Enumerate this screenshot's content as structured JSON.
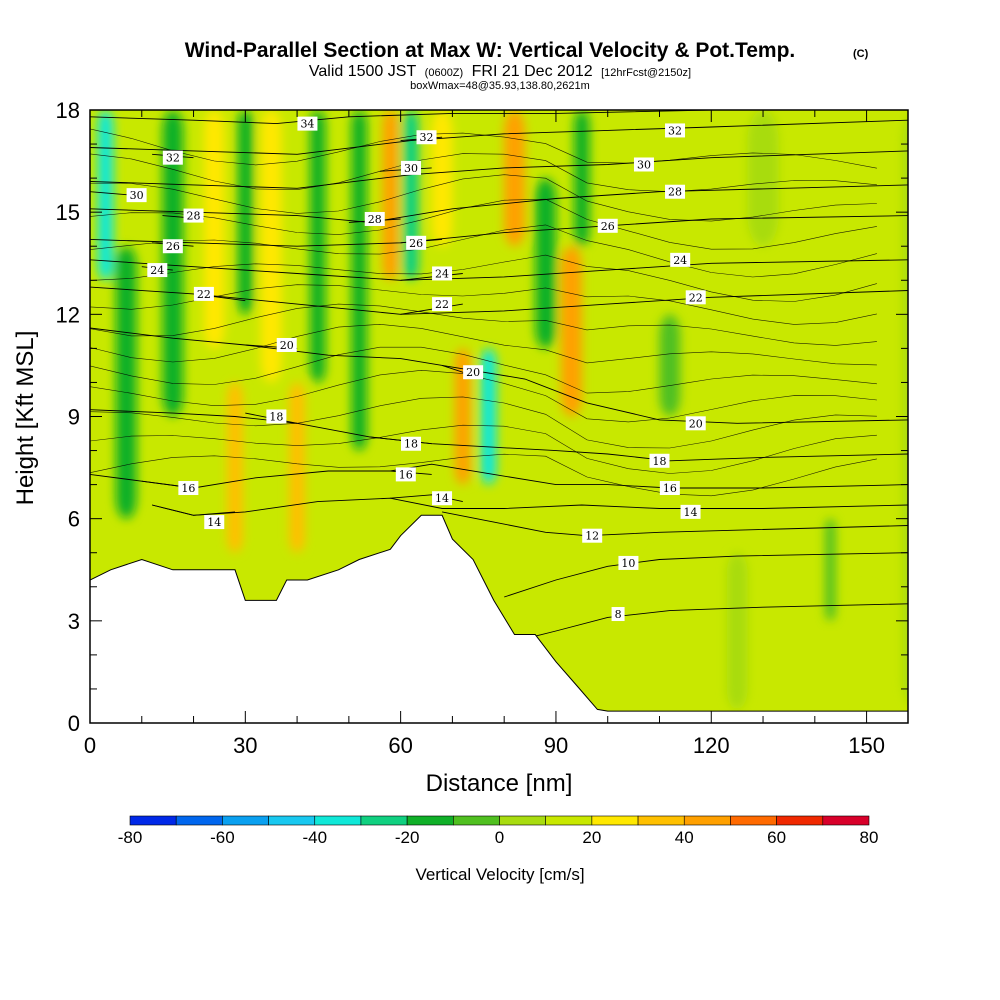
{
  "chart_data": {
    "type": "heatmap",
    "title": "Wind-Parallel Section at Max W: Vertical Velocity & Pot.Temp.",
    "title_mark": "(C)",
    "subtitle_parts": [
      "Valid 1500 JST",
      "(0600Z)",
      "FRI 21 Dec 2012",
      "[12hrFcst@2150z]"
    ],
    "subtitle2": "boxWmax=48@35.93,138.80,2621m",
    "xlabel": "Distance [nm]",
    "ylabel": "Height [Kft MSL]",
    "xlim": [
      0,
      158
    ],
    "ylim": [
      0,
      18
    ],
    "x_ticks": [
      0,
      30,
      60,
      90,
      120,
      150
    ],
    "y_ticks": [
      0,
      3,
      6,
      9,
      12,
      15,
      18
    ],
    "grid": false,
    "colorbar": {
      "title": "Vertical Velocity [cm/s]",
      "min": -80,
      "max": 80,
      "step": 10,
      "tick_labels": [
        -80,
        -60,
        -40,
        -20,
        0,
        20,
        40,
        60,
        80
      ],
      "colors": [
        "#0028e8",
        "#0066ee",
        "#0aa0f0",
        "#18c8f0",
        "#10e8d8",
        "#10d080",
        "#10b028",
        "#50c020",
        "#a8dc10",
        "#c8e800",
        "#ffe800",
        "#ffc000",
        "#ffa000",
        "#ff6a00",
        "#f02800",
        "#d8002a",
        "#a0005a",
        "#6a0090"
      ]
    },
    "terrain_kft": [
      [
        0,
        4.2
      ],
      [
        4,
        4.5
      ],
      [
        10,
        4.8
      ],
      [
        16,
        4.5
      ],
      [
        25,
        4.5
      ],
      [
        28,
        4.5
      ],
      [
        30,
        3.6
      ],
      [
        36,
        3.6
      ],
      [
        38,
        4.2
      ],
      [
        42,
        4.2
      ],
      [
        48,
        4.5
      ],
      [
        52,
        4.8
      ],
      [
        58,
        5.1
      ],
      [
        60,
        5.5
      ],
      [
        64,
        6.1
      ],
      [
        68,
        6.1
      ],
      [
        70,
        5.4
      ],
      [
        74,
        4.8
      ],
      [
        78,
        3.6
      ],
      [
        82,
        2.6
      ],
      [
        86,
        2.6
      ],
      [
        90,
        1.8
      ],
      [
        94,
        1.1
      ],
      [
        98,
        0.4
      ],
      [
        100,
        0.35
      ],
      [
        158,
        0.35
      ]
    ],
    "velocity_features": [
      {
        "x": 3,
        "ytop": 18,
        "ybot": 13,
        "w": 3,
        "value": -40
      },
      {
        "x": 7,
        "ytop": 14,
        "ybot": 6,
        "w": 4,
        "value": -20
      },
      {
        "x": 16,
        "ytop": 18,
        "ybot": 9,
        "w": 4,
        "value": -15
      },
      {
        "x": 24,
        "ytop": 18,
        "ybot": 11,
        "w": 4,
        "value": 20
      },
      {
        "x": 28,
        "ytop": 10,
        "ybot": 5,
        "w": 3,
        "value": 30
      },
      {
        "x": 30,
        "ytop": 18,
        "ybot": 12,
        "w": 3,
        "value": -20
      },
      {
        "x": 35,
        "ytop": 18,
        "ybot": 10,
        "w": 4,
        "value": 25
      },
      {
        "x": 40,
        "ytop": 10,
        "ybot": 5,
        "w": 3,
        "value": 30
      },
      {
        "x": 44,
        "ytop": 18,
        "ybot": 10,
        "w": 3,
        "value": -15
      },
      {
        "x": 52,
        "ytop": 18,
        "ybot": 8,
        "w": 3,
        "value": -20
      },
      {
        "x": 58,
        "ytop": 18,
        "ybot": 13,
        "w": 3,
        "value": 45
      },
      {
        "x": 62,
        "ytop": 18,
        "ybot": 13,
        "w": 3,
        "value": -25
      },
      {
        "x": 68,
        "ytop": 18,
        "ybot": 14,
        "w": 4,
        "value": 25
      },
      {
        "x": 72,
        "ytop": 11,
        "ybot": 7,
        "w": 3,
        "value": 48
      },
      {
        "x": 77,
        "ytop": 11,
        "ybot": 7,
        "w": 3,
        "value": -35
      },
      {
        "x": 82,
        "ytop": 18,
        "ybot": 14,
        "w": 4,
        "value": 40
      },
      {
        "x": 88,
        "ytop": 16,
        "ybot": 11,
        "w": 4,
        "value": -20
      },
      {
        "x": 93,
        "ytop": 14,
        "ybot": 9,
        "w": 4,
        "value": 45
      },
      {
        "x": 95,
        "ytop": 18,
        "ybot": 14,
        "w": 3,
        "value": -20
      },
      {
        "x": 88,
        "ytop": 6,
        "ybot": 3,
        "w": 4,
        "value": 15
      },
      {
        "x": 112,
        "ytop": 12,
        "ybot": 9,
        "w": 4,
        "value": -10
      },
      {
        "x": 130,
        "ytop": 18,
        "ybot": 14,
        "w": 6,
        "value": 5
      },
      {
        "x": 135,
        "ytop": 12,
        "ybot": 6,
        "w": 5,
        "value": 10
      },
      {
        "x": 110,
        "ytop": 5,
        "ybot": 0.4,
        "w": 3,
        "value": 12
      },
      {
        "x": 125,
        "ytop": 5,
        "ybot": 0.4,
        "w": 4,
        "value": 8
      },
      {
        "x": 143,
        "ytop": 6,
        "ybot": 3,
        "w": 2,
        "value": -10
      },
      {
        "x": 150,
        "ytop": 4,
        "ybot": 0.4,
        "w": 3,
        "value": 10
      },
      {
        "x": 160,
        "ytop": 18,
        "ybot": 0.4,
        "w": 6,
        "value": 5
      }
    ],
    "theta_contours": [
      {
        "label": "8",
        "points": [
          [
            82,
            2.4
          ],
          [
            90,
            2.7
          ],
          [
            100,
            3.1
          ],
          [
            112,
            3.3
          ],
          [
            130,
            3.4
          ],
          [
            158,
            3.5
          ]
        ],
        "label_at": [
          102,
          3.2
        ]
      },
      {
        "label": "10",
        "points": [
          [
            80,
            3.7
          ],
          [
            90,
            4.2
          ],
          [
            100,
            4.6
          ],
          [
            110,
            4.8
          ],
          [
            125,
            4.9
          ],
          [
            158,
            5.0
          ]
        ],
        "label_at": [
          104,
          4.7
        ]
      },
      {
        "label": "12",
        "points": [
          [
            68,
            6.2
          ],
          [
            78,
            5.9
          ],
          [
            88,
            5.6
          ],
          [
            96,
            5.5
          ],
          [
            110,
            5.6
          ],
          [
            158,
            5.8
          ]
        ],
        "label_at": [
          97,
          5.5
        ]
      },
      {
        "label": "14",
        "points": [
          [
            12,
            6.4
          ],
          [
            20,
            6.1
          ],
          [
            30,
            6.2
          ],
          [
            44,
            6.5
          ],
          [
            58,
            6.6
          ],
          [
            68,
            6.3
          ],
          [
            80,
            6.3
          ],
          [
            95,
            6.4
          ],
          [
            110,
            6.3
          ],
          [
            130,
            6.3
          ],
          [
            158,
            6.4
          ]
        ],
        "label_at": [
          116,
          6.2
        ]
      },
      {
        "label": "14",
        "points": [
          [
            12,
            6.4
          ],
          [
            20,
            6.1
          ],
          [
            28,
            6.2
          ]
        ],
        "label_at": [
          24,
          5.9
        ]
      },
      {
        "label": "14",
        "points": [
          [
            58,
            6.6
          ],
          [
            66,
            6.7
          ],
          [
            72,
            6.5
          ]
        ],
        "label_at": [
          68,
          6.6
        ]
      },
      {
        "label": "16",
        "points": [
          [
            0,
            7.3
          ],
          [
            10,
            7.1
          ],
          [
            20,
            6.9
          ],
          [
            32,
            7.2
          ],
          [
            46,
            7.4
          ],
          [
            58,
            7.4
          ],
          [
            66,
            7.6
          ],
          [
            78,
            7.3
          ],
          [
            90,
            7.0
          ],
          [
            100,
            7.0
          ],
          [
            112,
            6.9
          ],
          [
            130,
            6.9
          ],
          [
            158,
            7.0
          ]
        ],
        "label_at": [
          112,
          6.9
        ]
      },
      {
        "label": "16",
        "points": [
          [
            10,
            7.1
          ],
          [
            20,
            6.9
          ]
        ],
        "label_at": [
          19,
          6.9
        ]
      },
      {
        "label": "16",
        "points": [
          [
            58,
            7.4
          ],
          [
            66,
            7.3
          ]
        ],
        "label_at": [
          61,
          7.3
        ]
      },
      {
        "label": "18",
        "points": [
          [
            0,
            9.2
          ],
          [
            16,
            9.1
          ],
          [
            28,
            9.0
          ],
          [
            40,
            8.8
          ],
          [
            54,
            8.4
          ],
          [
            66,
            8.2
          ],
          [
            78,
            8.1
          ],
          [
            90,
            8.0
          ],
          [
            100,
            7.9
          ],
          [
            112,
            7.7
          ],
          [
            130,
            7.8
          ],
          [
            158,
            7.9
          ]
        ],
        "label_at": [
          110,
          7.7
        ]
      },
      {
        "label": "18",
        "points": [
          [
            30,
            9.1
          ],
          [
            40,
            8.8
          ]
        ],
        "label_at": [
          36,
          9.0
        ]
      },
      {
        "label": "18",
        "points": [
          [
            54,
            8.4
          ],
          [
            66,
            8.2
          ]
        ],
        "label_at": [
          62,
          8.2
        ]
      },
      {
        "label": "20",
        "points": [
          [
            0,
            11.6
          ],
          [
            16,
            11.3
          ],
          [
            30,
            11.1
          ],
          [
            46,
            10.8
          ],
          [
            60,
            10.7
          ],
          [
            72,
            10.4
          ],
          [
            84,
            10.1
          ],
          [
            96,
            9.4
          ],
          [
            110,
            8.9
          ],
          [
            125,
            8.8
          ],
          [
            158,
            8.9
          ]
        ],
        "label_at": [
          117,
          8.8
        ]
      },
      {
        "label": "20",
        "points": [
          [
            30,
            11.1
          ],
          [
            40,
            11.0
          ]
        ],
        "label_at": [
          38,
          11.1
        ]
      },
      {
        "label": "20",
        "points": [
          [
            68,
            10.5
          ],
          [
            76,
            10.1
          ]
        ],
        "label_at": [
          74,
          10.3
        ]
      },
      {
        "label": "22",
        "points": [
          [
            0,
            12.8
          ],
          [
            20,
            12.6
          ],
          [
            40,
            12.3
          ],
          [
            60,
            12.0
          ],
          [
            80,
            12.1
          ],
          [
            100,
            12.3
          ],
          [
            120,
            12.5
          ],
          [
            158,
            12.7
          ]
        ],
        "label_at": [
          117,
          12.5
        ]
      },
      {
        "label": "22",
        "points": [
          [
            20,
            12.6
          ],
          [
            30,
            12.4
          ]
        ],
        "label_at": [
          22,
          12.6
        ]
      },
      {
        "label": "22",
        "points": [
          [
            60,
            12.0
          ],
          [
            72,
            12.3
          ]
        ],
        "label_at": [
          68,
          12.3
        ]
      },
      {
        "label": "24",
        "points": [
          [
            0,
            13.6
          ],
          [
            20,
            13.4
          ],
          [
            40,
            13.2
          ],
          [
            60,
            13.0
          ],
          [
            80,
            13.1
          ],
          [
            100,
            13.3
          ],
          [
            120,
            13.5
          ],
          [
            158,
            13.6
          ]
        ],
        "label_at": [
          114,
          13.6
        ]
      },
      {
        "label": "24",
        "points": [
          [
            10,
            13.4
          ],
          [
            16,
            13.3
          ]
        ],
        "label_at": [
          13,
          13.3
        ]
      },
      {
        "label": "24",
        "points": [
          [
            60,
            13.0
          ],
          [
            72,
            13.2
          ]
        ],
        "label_at": [
          68,
          13.2
        ]
      },
      {
        "label": "26",
        "points": [
          [
            0,
            14.2
          ],
          [
            20,
            14.1
          ],
          [
            40,
            14.0
          ],
          [
            60,
            14.1
          ],
          [
            80,
            14.4
          ],
          [
            100,
            14.6
          ],
          [
            120,
            14.8
          ],
          [
            158,
            14.9
          ]
        ],
        "label_at": [
          100,
          14.6
        ]
      },
      {
        "label": "26",
        "points": [
          [
            12,
            14.1
          ],
          [
            20,
            14.0
          ]
        ],
        "label_at": [
          16,
          14.0
        ]
      },
      {
        "label": "26",
        "points": [
          [
            60,
            14.1
          ],
          [
            68,
            14.2
          ]
        ],
        "label_at": [
          63,
          14.1
        ]
      },
      {
        "label": "28",
        "points": [
          [
            0,
            15.1
          ],
          [
            20,
            15.0
          ],
          [
            40,
            14.9
          ],
          [
            54,
            14.7
          ],
          [
            70,
            15.1
          ],
          [
            90,
            15.4
          ],
          [
            110,
            15.6
          ],
          [
            158,
            15.8
          ]
        ],
        "label_at": [
          113,
          15.6
        ]
      },
      {
        "label": "28",
        "points": [
          [
            14,
            14.9
          ],
          [
            22,
            14.8
          ]
        ],
        "label_at": [
          20,
          14.9
        ]
      },
      {
        "label": "28",
        "points": [
          [
            50,
            14.7
          ],
          [
            60,
            14.8
          ]
        ],
        "label_at": [
          55,
          14.8
        ]
      },
      {
        "label": "30",
        "points": [
          [
            0,
            15.9
          ],
          [
            20,
            15.8
          ],
          [
            40,
            15.7
          ],
          [
            62,
            16.1
          ],
          [
            80,
            16.3
          ],
          [
            100,
            16.4
          ],
          [
            120,
            16.6
          ],
          [
            158,
            16.8
          ]
        ],
        "label_at": [
          107,
          16.4
        ]
      },
      {
        "label": "30",
        "points": [
          [
            0,
            15.6
          ],
          [
            8,
            15.5
          ]
        ],
        "label_at": [
          9,
          15.5
        ]
      },
      {
        "label": "30",
        "points": [
          [
            56,
            16.2
          ],
          [
            66,
            16.3
          ]
        ],
        "label_at": [
          62,
          16.3
        ]
      },
      {
        "label": "32",
        "points": [
          [
            0,
            16.9
          ],
          [
            20,
            16.8
          ],
          [
            40,
            16.7
          ],
          [
            62,
            17.1
          ],
          [
            80,
            17.3
          ],
          [
            100,
            17.4
          ],
          [
            120,
            17.5
          ],
          [
            158,
            17.7
          ]
        ],
        "label_at": [
          113,
          17.4
        ]
      },
      {
        "label": "32",
        "points": [
          [
            12,
            16.7
          ],
          [
            20,
            16.6
          ]
        ],
        "label_at": [
          16,
          16.6
        ]
      },
      {
        "label": "32",
        "points": [
          [
            60,
            17.1
          ],
          [
            68,
            17.2
          ]
        ],
        "label_at": [
          65,
          17.2
        ]
      },
      {
        "label": "34",
        "points": [
          [
            0,
            17.8
          ],
          [
            20,
            17.7
          ],
          [
            36,
            17.6
          ],
          [
            50,
            17.8
          ],
          [
            70,
            17.9
          ],
          [
            90,
            17.9
          ],
          [
            120,
            18.0
          ]
        ],
        "label_at": [
          42,
          17.6
        ]
      }
    ]
  }
}
